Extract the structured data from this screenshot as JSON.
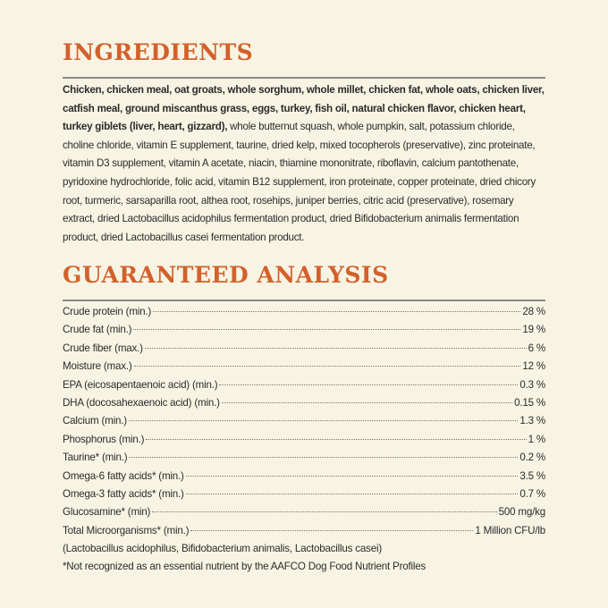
{
  "ingredients": {
    "title": "INGREDIENTS",
    "bold_text": "Chicken, chicken meal, oat groats, whole sorghum, whole millet, chicken fat, whole oats, chicken liver, catfish meal, ground miscanthus grass, eggs, turkey, fish oil, natural chicken flavor, chicken heart, turkey giblets (liver, heart, gizzard),",
    "text": "whole butternut squash, whole pumpkin, salt, potassium chloride, choline chloride, vitamin E supplement, taurine, dried kelp, mixed tocopherols (preservative), zinc proteinate, vitamin D3 supplement, vitamin A acetate, niacin, thiamine mononitrate, riboflavin, calcium pantothenate, pyridoxine hydrochloride, folic acid, vitamin B12 supplement, iron proteinate, copper proteinate, dried chicory root, turmeric, sarsaparilla root, althea root, rosehips, juniper berries, citric acid (preservative), rosemary extract, dried Lactobacillus acidophilus fermentation product, dried Bifidobacterium animalis fermentation product, dried Lactobacillus casei fermentation product."
  },
  "analysis": {
    "title": "GUARANTEED ANALYSIS",
    "rows": [
      [
        "Crude protein (min.)",
        "28 %"
      ],
      [
        "Crude fat (min.)",
        "19 %"
      ],
      [
        "Crude fiber (max.)",
        "6 %"
      ],
      [
        "Moisture (max.)",
        "12 %"
      ],
      [
        "EPA (eicosapentaenoic acid) (min.)",
        "0.3 %"
      ],
      [
        "DHA (docosahexaenoic acid) (min.)",
        "0.15 %"
      ],
      [
        "Calcium (min.)",
        "1.3 %"
      ],
      [
        "Phosphorus (min.)",
        "1 %"
      ],
      [
        "Taurine* (min.)",
        "0.2 %"
      ],
      [
        "Omega-6 fatty acids* (min.)",
        "3.5 %"
      ],
      [
        "Omega-3 fatty acids* (min.)",
        "0.7 %"
      ],
      [
        "Glucosamine* (min)",
        "500 mg/kg"
      ],
      [
        "Total Microorganisms* (min.)",
        "1 Million CFU/lb"
      ]
    ],
    "microorganisms_note": "(Lactobacillus acidophilus, Bifidobacterium animalis, Lactobacillus casei)",
    "footnote": "*Not recognized as an essential nutrient by the AAFCO Dog Food Nutrient Profiles"
  }
}
